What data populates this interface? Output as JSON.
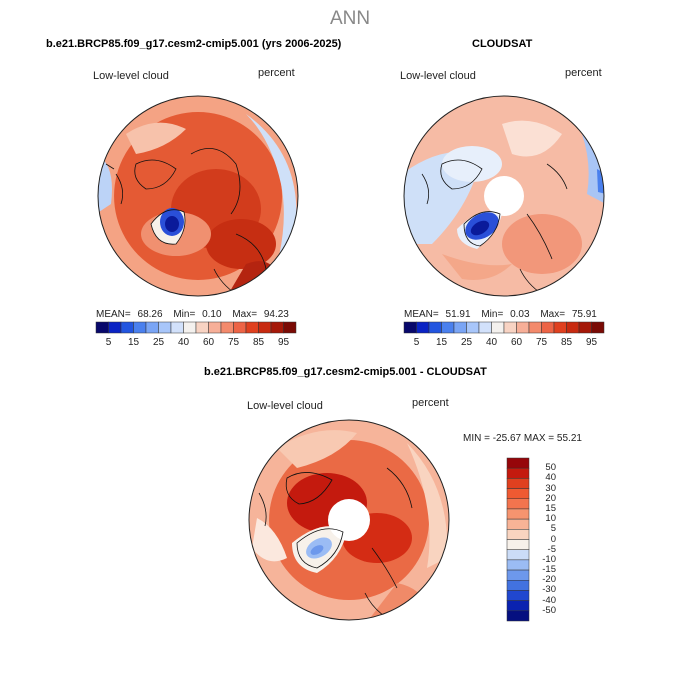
{
  "suptitle": "ANN",
  "panels": {
    "model": {
      "title": "b.e21.BRCP85.f09_g17.cesm2-cmip5.001 (yrs 2006-2025)",
      "left_label": "Low-level cloud",
      "right_label": "percent",
      "stats": {
        "mean_label": "MEAN=",
        "mean": "68.26",
        "min_label": "Min=",
        "min": "0.10",
        "max_label": "Max=",
        "max": "94.23"
      }
    },
    "obs": {
      "title": "CLOUDSAT",
      "left_label": "Low-level cloud",
      "right_label": "percent",
      "stats": {
        "mean_label": "MEAN=",
        "mean": "51.91",
        "min_label": "Min=",
        "min": "0.03",
        "max_label": "Max=",
        "max": "75.91"
      }
    },
    "diff": {
      "title": "b.e21.BRCP85.f09_g17.cesm2-cmip5.001 - CLOUDSAT",
      "left_label": "Low-level cloud",
      "right_label": "percent",
      "minmax": "MIN = -25.67 MAX =  55.21"
    }
  },
  "colorbar_h": {
    "ticks": [
      "5",
      "15",
      "25",
      "40",
      "60",
      "75",
      "85",
      "95"
    ],
    "colors": [
      "#08086b",
      "#0a23c4",
      "#2255e0",
      "#4a80ee",
      "#7aa5f5",
      "#a8c6fa",
      "#d2e1fb",
      "#f4f1ee",
      "#f8d3c3",
      "#f7af98",
      "#f38a6c",
      "#ed6446",
      "#e0401f",
      "#c82a10",
      "#a51808",
      "#7a0a04"
    ]
  },
  "colorbar_v": {
    "labels": [
      "50",
      "40",
      "30",
      "20",
      "15",
      "10",
      "5",
      "0",
      "-5",
      "-10",
      "-15",
      "-20",
      "-30",
      "-40",
      "-50"
    ],
    "colors": [
      "#96060a",
      "#c41a0e",
      "#e0401f",
      "#ef5a32",
      "#f3744e",
      "#f6946f",
      "#f8b396",
      "#f9d4c0",
      "#f7f1ea",
      "#cbdcf7",
      "#9bbcf4",
      "#6d98ec",
      "#4272e0",
      "#2047cf",
      "#0a22b0",
      "#050f80"
    ]
  },
  "map_fields": {
    "model": {
      "background": "#e45a34",
      "rim": "#f7b9a0"
    },
    "obs": {
      "background": "#f6bba5",
      "rim": "#cfe0f8"
    },
    "diff": {
      "background": "#ea6a45",
      "rim": "#f6b49a"
    }
  }
}
